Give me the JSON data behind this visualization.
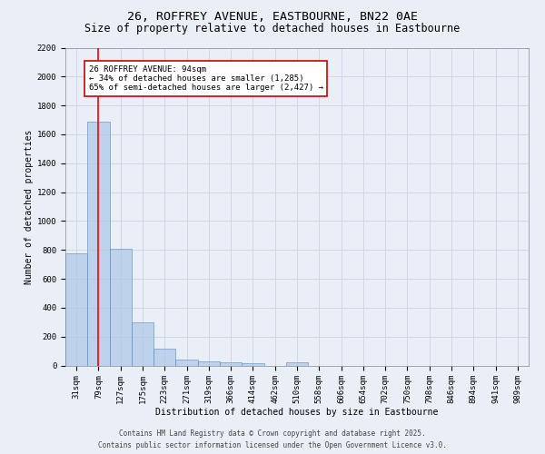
{
  "title1": "26, ROFFREY AVENUE, EASTBOURNE, BN22 0AE",
  "title2": "Size of property relative to detached houses in Eastbourne",
  "xlabel": "Distribution of detached houses by size in Eastbourne",
  "ylabel": "Number of detached properties",
  "categories": [
    "31sqm",
    "79sqm",
    "127sqm",
    "175sqm",
    "223sqm",
    "271sqm",
    "319sqm",
    "366sqm",
    "414sqm",
    "462sqm",
    "510sqm",
    "558sqm",
    "606sqm",
    "654sqm",
    "702sqm",
    "750sqm",
    "798sqm",
    "846sqm",
    "894sqm",
    "941sqm",
    "989sqm"
  ],
  "values": [
    775,
    1690,
    810,
    300,
    115,
    40,
    30,
    20,
    15,
    0,
    20,
    0,
    0,
    0,
    0,
    0,
    0,
    0,
    0,
    0,
    0
  ],
  "bar_color": "#aec6e8",
  "bar_edge_color": "#5a8fc2",
  "bar_alpha": 0.7,
  "red_line_x": 1.0,
  "ylim": [
    0,
    2200
  ],
  "yticks": [
    0,
    200,
    400,
    600,
    800,
    1000,
    1200,
    1400,
    1600,
    1800,
    2000,
    2200
  ],
  "annotation_text": "26 ROFFREY AVENUE: 94sqm\n← 34% of detached houses are smaller (1,285)\n65% of semi-detached houses are larger (2,427) →",
  "annotation_box_color": "#ffffff",
  "annotation_box_edge_color": "#cc0000",
  "grid_color": "#d0d8e8",
  "background_color": "#eaeff7",
  "footer1": "Contains HM Land Registry data © Crown copyright and database right 2025.",
  "footer2": "Contains public sector information licensed under the Open Government Licence v3.0.",
  "title_fontsize": 9.5,
  "subtitle_fontsize": 8.5,
  "annotation_fontsize": 6.5,
  "footer_fontsize": 5.5,
  "axis_label_fontsize": 7.0,
  "tick_fontsize": 6.5
}
